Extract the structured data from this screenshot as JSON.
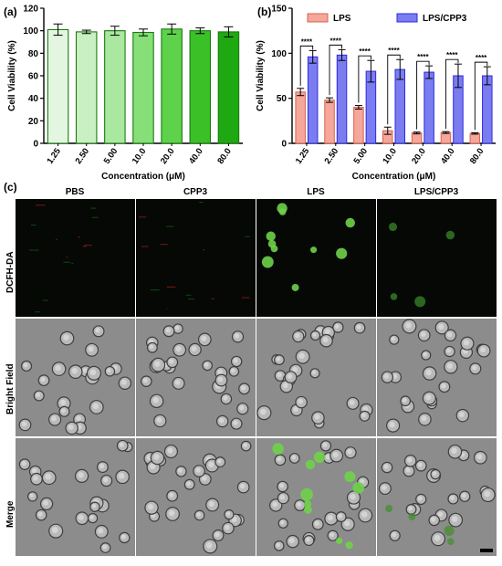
{
  "panels": {
    "a": "(a)",
    "b": "(b)",
    "c": "(c)"
  },
  "chart_data": [
    {
      "type": "bar",
      "categories": [
        "1.25",
        "2.50",
        "5.00",
        "10.0",
        "20.0",
        "40.0",
        "80.0"
      ],
      "values": [
        101,
        99,
        100,
        98.5,
        101.5,
        100,
        99
      ],
      "errors": [
        5,
        1.5,
        4,
        3,
        4.5,
        2.5,
        4.5
      ],
      "xlabel": "Concentration (μM)",
      "ylabel": "Cell Viability (%)",
      "ylim": [
        0,
        120
      ],
      "yticks": [
        0,
        20,
        40,
        60,
        80,
        100,
        120
      ],
      "grid": false,
      "colors": [
        "#e3f7e0",
        "#c9f0c2",
        "#a9e89e",
        "#86df77",
        "#5fd24c",
        "#3bc027",
        "#1ea811"
      ]
    },
    {
      "type": "bar",
      "categories": [
        "1.25",
        "2.50",
        "5.00",
        "10.0",
        "20.0",
        "40.0",
        "80.0"
      ],
      "series": [
        {
          "name": "LPS",
          "values": [
            57,
            48,
            40,
            14,
            11.5,
            12,
            11
          ],
          "errors": [
            4,
            2.5,
            2,
            4,
            1,
            1,
            0.8
          ],
          "color": "#f4a79a"
        },
        {
          "name": "LPS/CPP3",
          "values": [
            96,
            98,
            80,
            82,
            79,
            75,
            75
          ],
          "errors": [
            7,
            6,
            12,
            11,
            7,
            13,
            10
          ],
          "color": "#7b7cf0"
        }
      ],
      "significance": [
        "****",
        "****",
        "****",
        "****",
        "****",
        "****",
        "****"
      ],
      "xlabel": "Concentration (μM)",
      "ylabel": "Cell Viability (%)",
      "ylim": [
        0,
        150
      ],
      "yticks": [
        0,
        50,
        100,
        150
      ],
      "legend_position": "top",
      "grid": false
    }
  ],
  "micro": {
    "columns": [
      "PBS",
      "CPP3",
      "LPS",
      "LPS/CPP3"
    ],
    "rows": [
      "DCFH-DA",
      "Bright Field",
      "Merge"
    ]
  }
}
